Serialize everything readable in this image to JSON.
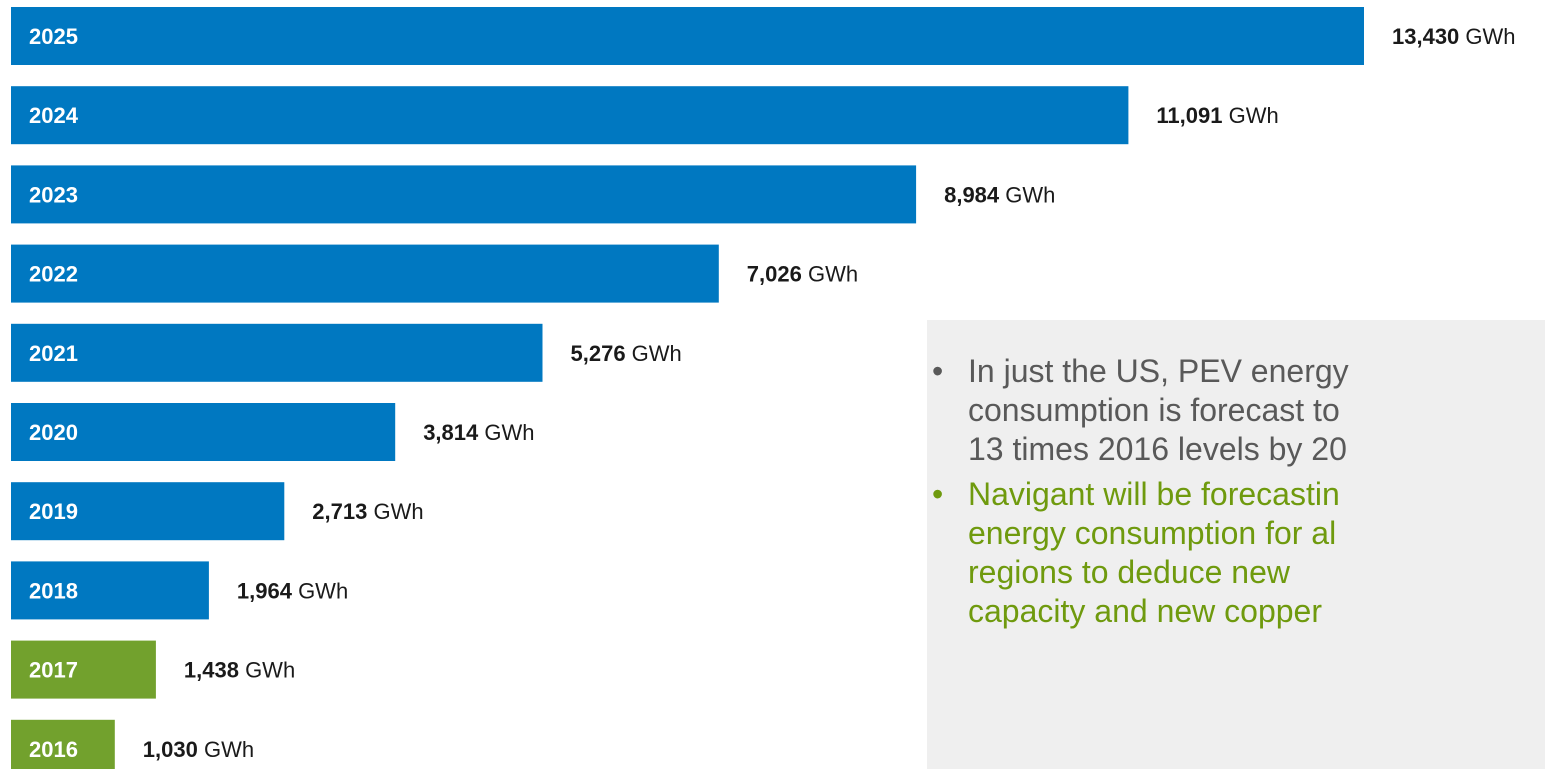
{
  "chart_data": {
    "type": "bar",
    "orientation": "horizontal",
    "unit": "GWh",
    "categories": [
      "2025",
      "2024",
      "2023",
      "2022",
      "2021",
      "2020",
      "2019",
      "2018",
      "2017",
      "2016"
    ],
    "values": [
      13430,
      11091,
      8984,
      7026,
      5276,
      3814,
      2713,
      1964,
      1438,
      1030
    ],
    "value_labels": [
      "13,430",
      "11,091",
      "8,984",
      "7,026",
      "5,276",
      "3,814",
      "2,713",
      "1,964",
      "1,438",
      "1,030"
    ],
    "bar_colors": [
      "#0078c1",
      "#0078c1",
      "#0078c1",
      "#0078c1",
      "#0078c1",
      "#0078c1",
      "#0078c1",
      "#0078c1",
      "#72a12d",
      "#72a12d"
    ],
    "title": "",
    "xlabel": "",
    "ylabel": "",
    "grid": false,
    "legend": "none"
  },
  "notes": {
    "bullet_1_lines": [
      "In just the US, PEV energy",
      "consumption is forecast to",
      "13 times 2016 levels by 20"
    ],
    "bullet_2_lines": [
      "Navigant will be forecastin",
      "energy consumption for al",
      "regions to deduce new",
      "capacity and new copper"
    ],
    "bullet_symbol": "•",
    "colors": {
      "bullet_1": "#595959",
      "bullet_2": "#6f9a0e",
      "background": "#efefef"
    }
  }
}
